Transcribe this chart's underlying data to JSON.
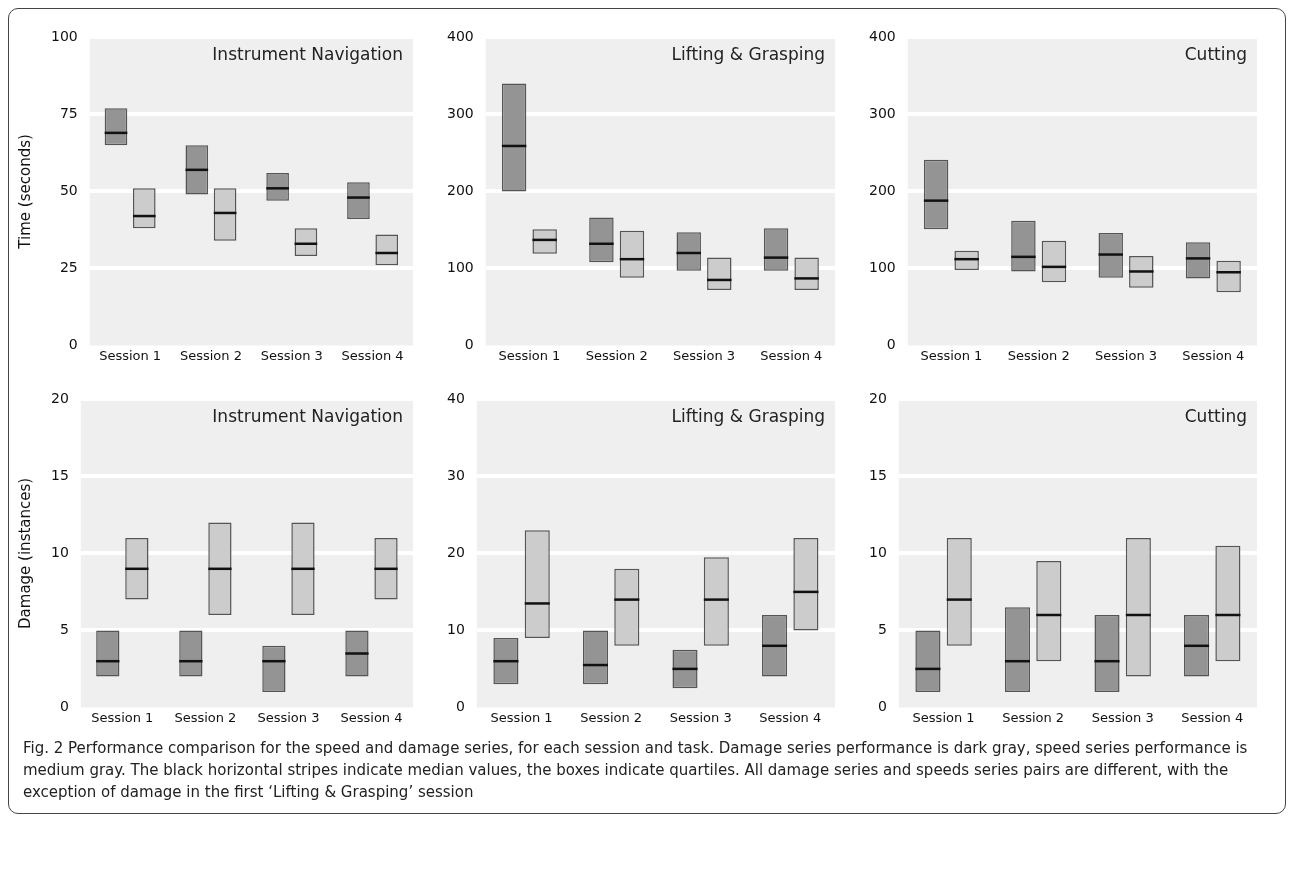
{
  "chart_data": [
    {
      "type": "box",
      "title": "Instrument Navigation",
      "ylabel": "Time (seconds)",
      "categories": [
        "Session 1",
        "Session 2",
        "Session 3",
        "Session 4"
      ],
      "ylim": [
        0,
        100
      ],
      "yticks": [
        0,
        25,
        50,
        75,
        100
      ],
      "grid": "y",
      "legend": false,
      "series": [
        {
          "color": "#949494",
          "boxes": [
            {
              "low": 65,
              "q1": 65,
              "median": 69,
              "q3": 77,
              "high": 77
            },
            {
              "low": 49,
              "q1": 49,
              "median": 57,
              "q3": 65,
              "high": 65
            },
            {
              "low": 47,
              "q1": 47,
              "median": 51,
              "q3": 56,
              "high": 56
            },
            {
              "low": 41,
              "q1": 41,
              "median": 48,
              "q3": 53,
              "high": 53
            }
          ]
        },
        {
          "color": "#cccccc",
          "boxes": [
            {
              "low": 38,
              "q1": 38,
              "median": 42,
              "q3": 51,
              "high": 51
            },
            {
              "low": 34,
              "q1": 34,
              "median": 43,
              "q3": 51,
              "high": 51
            },
            {
              "low": 29,
              "q1": 29,
              "median": 33,
              "q3": 38,
              "high": 38
            },
            {
              "low": 26,
              "q1": 26,
              "median": 30,
              "q3": 36,
              "high": 36
            }
          ]
        }
      ]
    },
    {
      "type": "box",
      "title": "Lifting & Grasping",
      "categories": [
        "Session 1",
        "Session 2",
        "Session 3",
        "Session 4"
      ],
      "ylim": [
        0,
        400
      ],
      "yticks": [
        0,
        100,
        200,
        300,
        400
      ],
      "grid": "y",
      "legend": false,
      "series": [
        {
          "color": "#949494",
          "boxes": [
            {
              "low": 200,
              "q1": 200,
              "median": 259,
              "q3": 340,
              "high": 340
            },
            {
              "low": 108,
              "q1": 108,
              "median": 132,
              "q3": 166,
              "high": 166
            },
            {
              "low": 97,
              "q1": 97,
              "median": 120,
              "q3": 147,
              "high": 147
            },
            {
              "low": 97,
              "q1": 97,
              "median": 114,
              "q3": 152,
              "high": 152
            }
          ]
        },
        {
          "color": "#cccccc",
          "boxes": [
            {
              "low": 119,
              "q1": 119,
              "median": 137,
              "q3": 151,
              "high": 151
            },
            {
              "low": 88,
              "q1": 88,
              "median": 112,
              "q3": 149,
              "high": 149
            },
            {
              "low": 72,
              "q1": 72,
              "median": 85,
              "q3": 114,
              "high": 114
            },
            {
              "low": 72,
              "q1": 72,
              "median": 87,
              "q3": 114,
              "high": 114
            }
          ]
        }
      ]
    },
    {
      "type": "box",
      "title": "Cutting",
      "categories": [
        "Session 1",
        "Session 2",
        "Session 3",
        "Session 4"
      ],
      "ylim": [
        0,
        400
      ],
      "yticks": [
        0,
        100,
        200,
        300,
        400
      ],
      "grid": "y",
      "legend": false,
      "series": [
        {
          "color": "#949494",
          "boxes": [
            {
              "low": 151,
              "q1": 151,
              "median": 188,
              "q3": 241,
              "high": 241
            },
            {
              "low": 96,
              "q1": 96,
              "median": 115,
              "q3": 162,
              "high": 162
            },
            {
              "low": 88,
              "q1": 88,
              "median": 118,
              "q3": 146,
              "high": 146
            },
            {
              "low": 87,
              "q1": 87,
              "median": 113,
              "q3": 134,
              "high": 134
            }
          ]
        },
        {
          "color": "#cccccc",
          "boxes": [
            {
              "low": 98,
              "q1": 98,
              "median": 112,
              "q3": 123,
              "high": 123
            },
            {
              "low": 82,
              "q1": 82,
              "median": 102,
              "q3": 136,
              "high": 136
            },
            {
              "low": 75,
              "q1": 75,
              "median": 96,
              "q3": 116,
              "high": 116
            },
            {
              "low": 69,
              "q1": 69,
              "median": 95,
              "q3": 110,
              "high": 110
            }
          ]
        }
      ]
    },
    {
      "type": "box",
      "title": "Instrument Navigation",
      "ylabel": "Damage (instances)",
      "categories": [
        "Session 1",
        "Session 2",
        "Session 3",
        "Session 4"
      ],
      "ylim": [
        0,
        20
      ],
      "yticks": [
        0,
        5,
        10,
        15,
        20
      ],
      "grid": "y",
      "legend": false,
      "series": [
        {
          "color": "#949494",
          "boxes": [
            {
              "low": 2,
              "q1": 2,
              "median": 3,
              "q3": 5,
              "high": 5
            },
            {
              "low": 2,
              "q1": 2,
              "median": 3,
              "q3": 5,
              "high": 5
            },
            {
              "low": 1,
              "q1": 1,
              "median": 3,
              "q3": 4,
              "high": 4
            },
            {
              "low": 2,
              "q1": 2,
              "median": 3.5,
              "q3": 5,
              "high": 5
            }
          ]
        },
        {
          "color": "#cccccc",
          "boxes": [
            {
              "low": 7,
              "q1": 7,
              "median": 9,
              "q3": 11,
              "high": 11
            },
            {
              "low": 6,
              "q1": 6,
              "median": 9,
              "q3": 12,
              "high": 12
            },
            {
              "low": 6,
              "q1": 6,
              "median": 9,
              "q3": 12,
              "high": 12
            },
            {
              "low": 7,
              "q1": 7,
              "median": 9,
              "q3": 11,
              "high": 11
            }
          ]
        }
      ]
    },
    {
      "type": "box",
      "title": "Lifting & Grasping",
      "categories": [
        "Session 1",
        "Session 2",
        "Session 3",
        "Session 4"
      ],
      "ylim": [
        0,
        40
      ],
      "yticks": [
        0,
        10,
        20,
        30,
        40
      ],
      "grid": "y",
      "legend": false,
      "series": [
        {
          "color": "#949494",
          "boxes": [
            {
              "low": 3,
              "q1": 3,
              "median": 6,
              "q3": 9,
              "high": 9
            },
            {
              "low": 3,
              "q1": 3,
              "median": 5.5,
              "q3": 10,
              "high": 10
            },
            {
              "low": 2.5,
              "q1": 2.5,
              "median": 5,
              "q3": 7.5,
              "high": 7.5
            },
            {
              "low": 4,
              "q1": 4,
              "median": 8,
              "q3": 12,
              "high": 12
            }
          ]
        },
        {
          "color": "#cccccc",
          "boxes": [
            {
              "low": 9,
              "q1": 9,
              "median": 13.5,
              "q3": 23,
              "high": 23
            },
            {
              "low": 8,
              "q1": 8,
              "median": 14,
              "q3": 18,
              "high": 18
            },
            {
              "low": 8,
              "q1": 8,
              "median": 14,
              "q3": 19.5,
              "high": 19.5
            },
            {
              "low": 10,
              "q1": 10,
              "median": 15,
              "q3": 22,
              "high": 22
            }
          ]
        }
      ]
    },
    {
      "type": "box",
      "title": "Cutting",
      "categories": [
        "Session 1",
        "Session 2",
        "Session 3",
        "Session 4"
      ],
      "ylim": [
        0,
        20
      ],
      "yticks": [
        0,
        5,
        10,
        15,
        20
      ],
      "grid": "y",
      "legend": false,
      "annotations": [
        "Fig. 2 Performance comparison for the speed and damage series, for each session and task. Damage series performance is dark gray, speed series performance is medium gray. The black horizontal stripes indicate median values, the boxes indicate quartiles. All damage series and speeds series pairs are different, with the exception of damage in the first ‘Lifting & Grasping’ session"
      ],
      "series": [
        {
          "color": "#949494",
          "boxes": [
            {
              "low": 1,
              "q1": 1,
              "median": 2.5,
              "q3": 5,
              "high": 5
            },
            {
              "low": 1,
              "q1": 1,
              "median": 3,
              "q3": 6.5,
              "high": 6.5
            },
            {
              "low": 1,
              "q1": 1,
              "median": 3,
              "q3": 6,
              "high": 6
            },
            {
              "low": 2,
              "q1": 2,
              "median": 4,
              "q3": 6,
              "high": 6
            }
          ]
        },
        {
          "color": "#cccccc",
          "boxes": [
            {
              "low": 4,
              "q1": 4,
              "median": 7,
              "q3": 11,
              "high": 11
            },
            {
              "low": 3,
              "q1": 3,
              "median": 6,
              "q3": 9.5,
              "high": 9.5
            },
            {
              "low": 2,
              "q1": 2,
              "median": 6,
              "q3": 11,
              "high": 11
            },
            {
              "low": 3,
              "q1": 3,
              "median": 6,
              "q3": 10.5,
              "high": 10.5
            }
          ]
        }
      ]
    }
  ]
}
